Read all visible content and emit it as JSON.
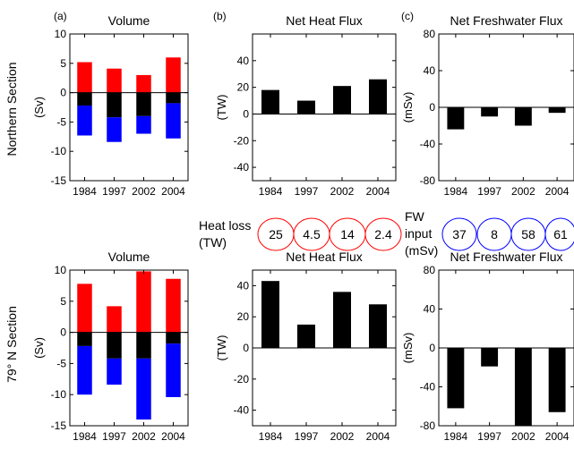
{
  "colors": {
    "red": "#ff0000",
    "blue": "#0000ff",
    "black": "#000000",
    "white": "#ffffff"
  },
  "row_labels": [
    "Northern Section",
    "79° N Section"
  ],
  "panel_letters": [
    "(a)",
    "(b)",
    "(c)"
  ],
  "heat_loss": {
    "label_line1": "Heat loss",
    "label_line2": "(TW)",
    "values": [
      "25",
      "4.5",
      "14",
      "2.4"
    ]
  },
  "fw_input": {
    "label_line1": "FW",
    "label_line2": "input",
    "label_line3": "(mSv)",
    "values": [
      "37",
      "8",
      "58",
      "61"
    ]
  },
  "chart_data": [
    {
      "type": "bar",
      "stacked": true,
      "row": "Northern Section",
      "title": "Volume",
      "xlabel": "",
      "ylabel": "(Sv)",
      "categories": [
        "1984",
        "1997",
        "2002",
        "2004"
      ],
      "ylim": [
        -15,
        10
      ],
      "yticks": [
        10,
        5,
        0,
        -5,
        -10,
        -15
      ],
      "series": [
        {
          "color": "red",
          "values": [
            5.2,
            4.1,
            3.0,
            6.0
          ]
        },
        {
          "color": "black",
          "values": [
            -2.2,
            -4.2,
            -4.0,
            -1.8
          ]
        },
        {
          "color": "blue",
          "values": [
            -5.1,
            -4.2,
            -3.0,
            -6.0
          ]
        }
      ],
      "zero_line": true,
      "grid": false
    },
    {
      "type": "bar",
      "row": "Northern Section",
      "title": "Net Heat Flux",
      "xlabel": "",
      "ylabel": "(TW)",
      "categories": [
        "1984",
        "1997",
        "2002",
        "2004"
      ],
      "ylim": [
        -50,
        60
      ],
      "yticks": [
        40,
        20,
        0,
        -20,
        -40
      ],
      "values": [
        18,
        10,
        21,
        26
      ],
      "zero_line": true,
      "grid": false
    },
    {
      "type": "bar",
      "row": "Northern Section",
      "title": "Net Freshwater Flux",
      "xlabel": "",
      "ylabel": "(mSv)",
      "categories": [
        "1984",
        "1997",
        "2002",
        "2004"
      ],
      "ylim": [
        -80,
        80
      ],
      "yticks": [
        80,
        40,
        0,
        -40,
        -80
      ],
      "values": [
        -24,
        -10,
        -20,
        -6
      ],
      "zero_line": true,
      "grid": false
    },
    {
      "type": "bar",
      "stacked": true,
      "row": "79° N Section",
      "title": "Volume",
      "xlabel": "",
      "ylabel": "(Sv)",
      "categories": [
        "1984",
        "1997",
        "2002",
        "2004"
      ],
      "ylim": [
        -15,
        10
      ],
      "yticks": [
        10,
        5,
        0,
        -5,
        -10,
        -15
      ],
      "series": [
        {
          "color": "red",
          "values": [
            7.8,
            4.2,
            9.8,
            8.6
          ]
        },
        {
          "color": "black",
          "values": [
            -2.2,
            -4.2,
            -4.2,
            -1.8
          ]
        },
        {
          "color": "blue",
          "values": [
            -7.8,
            -4.2,
            -9.8,
            -8.6
          ]
        }
      ],
      "zero_line": true,
      "grid": false
    },
    {
      "type": "bar",
      "row": "79° N Section",
      "title": "Net Heat Flux",
      "xlabel": "",
      "ylabel": "(TW)",
      "categories": [
        "1984",
        "1997",
        "2002",
        "2004"
      ],
      "ylim": [
        -50,
        50
      ],
      "yticks": [
        40,
        20,
        0,
        -20,
        -40
      ],
      "values": [
        43,
        15,
        36,
        28
      ],
      "zero_line": true,
      "grid": false
    },
    {
      "type": "bar",
      "row": "79° N Section",
      "title": "Net Freshwater Flux",
      "xlabel": "",
      "ylabel": "(mSv)",
      "categories": [
        "1984",
        "1997",
        "2002",
        "2004"
      ],
      "ylim": [
        -80,
        80
      ],
      "yticks": [
        80,
        40,
        0,
        -40,
        -80
      ],
      "values": [
        -62,
        -19,
        -80,
        -66
      ],
      "zero_line": true,
      "grid": false
    }
  ]
}
